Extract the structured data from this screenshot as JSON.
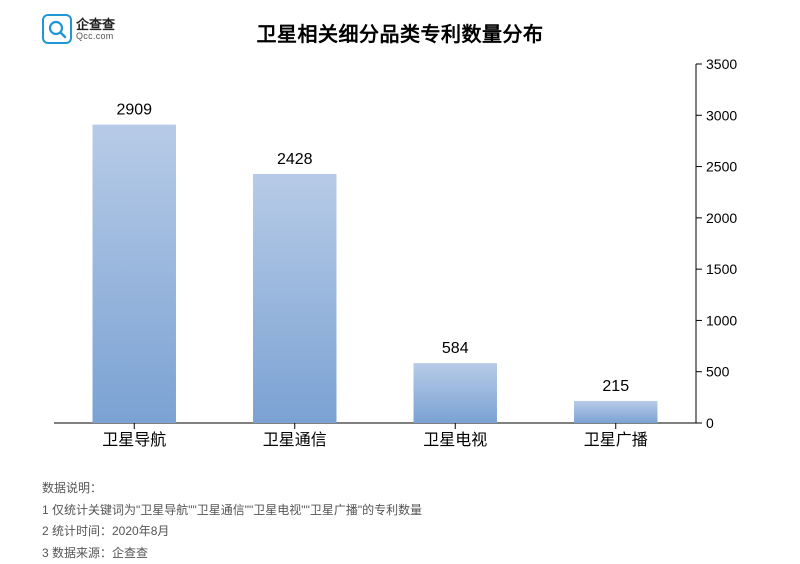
{
  "logo": {
    "cn": "企查查",
    "en": "Qcc.com"
  },
  "title": "卫星相关细分品类专利数量分布",
  "chart": {
    "type": "bar",
    "categories": [
      "卫星导航",
      "卫星通信",
      "卫星电视",
      "卫星广播"
    ],
    "values": [
      2909,
      2428,
      584,
      215
    ],
    "ylim": [
      0,
      3500
    ],
    "ytick_step": 500,
    "yticks": [
      0,
      500,
      1000,
      1500,
      2000,
      2500,
      3000,
      3500
    ],
    "bar_gradient_top": "#b7cbe7",
    "bar_gradient_bottom": "#7ba2d3",
    "background_color": "#ffffff",
    "axis_color": "#000000",
    "bar_width_ratio": 0.52,
    "label_fontsize": 16,
    "tick_fontsize": 14,
    "title_fontsize": 20
  },
  "notes": {
    "heading": "数据说明：",
    "lines": [
      "1 仅统计关键词为\"卫星导航\"\"卫星通信\"\"卫星电视\"\"卫星广播\"的专利数量",
      "2 统计时间：2020年8月",
      "3 数据来源：企查查"
    ]
  }
}
